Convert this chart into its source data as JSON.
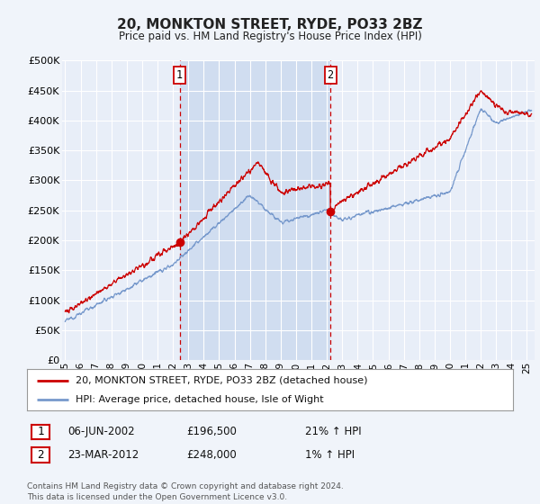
{
  "title": "20, MONKTON STREET, RYDE, PO33 2BZ",
  "subtitle": "Price paid vs. HM Land Registry's House Price Index (HPI)",
  "background_color": "#f0f4fa",
  "plot_bg_color": "#e8eef8",
  "shade_color": "#d0ddf0",
  "ylabel_ticks": [
    "£0",
    "£50K",
    "£100K",
    "£150K",
    "£200K",
    "£250K",
    "£300K",
    "£350K",
    "£400K",
    "£450K",
    "£500K"
  ],
  "ytick_values": [
    0,
    50000,
    100000,
    150000,
    200000,
    250000,
    300000,
    350000,
    400000,
    450000,
    500000
  ],
  "ylim": [
    0,
    500000
  ],
  "xlim_start": 1994.8,
  "xlim_end": 2025.5,
  "xtick_years": [
    1995,
    1996,
    1997,
    1998,
    1999,
    2000,
    2001,
    2002,
    2003,
    2004,
    2005,
    2006,
    2007,
    2008,
    2009,
    2010,
    2011,
    2012,
    2013,
    2014,
    2015,
    2016,
    2017,
    2018,
    2019,
    2020,
    2021,
    2022,
    2023,
    2024,
    2025
  ],
  "sale1_x": 2002.44,
  "sale1_y": 196500,
  "sale1_label": "1",
  "sale2_x": 2012.23,
  "sale2_y": 248000,
  "sale2_label": "2",
  "red_line_color": "#cc0000",
  "blue_line_color": "#7799cc",
  "marker_color": "#cc0000",
  "dashed_line_color": "#cc0000",
  "grid_color": "#c8d4e8",
  "legend_label_red": "20, MONKTON STREET, RYDE, PO33 2BZ (detached house)",
  "legend_label_blue": "HPI: Average price, detached house, Isle of Wight",
  "note1_label": "1",
  "note1_date": "06-JUN-2002",
  "note1_price": "£196,500",
  "note1_hpi": "21% ↑ HPI",
  "note2_label": "2",
  "note2_date": "23-MAR-2012",
  "note2_price": "£248,000",
  "note2_hpi": "1% ↑ HPI",
  "footer": "Contains HM Land Registry data © Crown copyright and database right 2024.\nThis data is licensed under the Open Government Licence v3.0."
}
